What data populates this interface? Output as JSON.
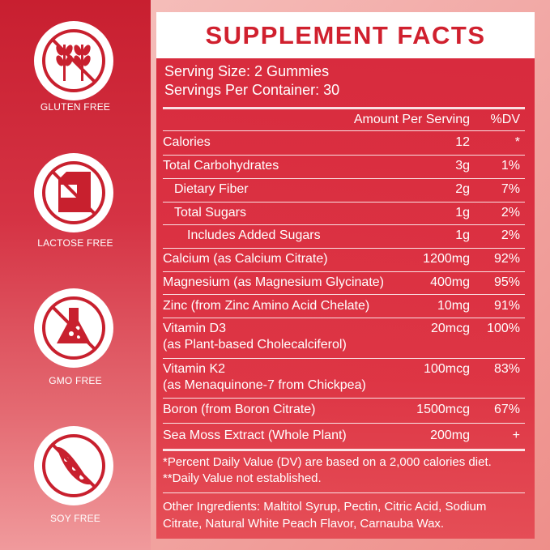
{
  "badges": [
    {
      "label": "GLUTEN FREE"
    },
    {
      "label": "LACTOSE FREE"
    },
    {
      "label": "GMO FREE"
    },
    {
      "label": "SOY FREE"
    }
  ],
  "title": "SUPPLEMENT FACTS",
  "serving_size": "Serving Size: 2 Gummies",
  "servings_per_container": "Servings Per Container: 30",
  "table": {
    "header": [
      "Amount Per Serving",
      "%DV"
    ],
    "rows": [
      {
        "name": "Calories",
        "amount": "12",
        "dv": "*"
      },
      {
        "name": "Total Carbohydrates",
        "amount": "3g",
        "dv": "1%"
      },
      {
        "name": "Dietary Fiber",
        "amount": "2g",
        "dv": "7%"
      },
      {
        "name": "Total Sugars",
        "amount": "1g",
        "dv": "2%"
      },
      {
        "name": "Includes Added Sugars",
        "amount": "1g",
        "dv": "2%"
      },
      {
        "name": "Calcium (as Calcium Citrate)",
        "amount": "1200mg",
        "dv": "92%"
      },
      {
        "name": "Magnesium (as Magnesium Glycinate)",
        "amount": "400mg",
        "dv": "95%"
      },
      {
        "name": "Zinc (from Zinc Amino Acid Chelate)",
        "amount": "10mg",
        "dv": "91%"
      },
      {
        "name": "Vitamin D3",
        "detail": "(as Plant-based Cholecalciferol)",
        "amount": "20mcg",
        "dv": "100%"
      },
      {
        "name": "Vitamin K2",
        "detail": "(as Menaquinone-7 from Chickpea)",
        "amount": "100mcg",
        "dv": "83%"
      },
      {
        "name": "Boron (from Boron Citrate)",
        "amount": "1500mcg",
        "dv": "67%"
      },
      {
        "name": "Sea Moss Extract (Whole Plant)",
        "amount": "200mg",
        "dv": "+"
      }
    ]
  },
  "footnotes": [
    "*Percent Daily Value (DV) are based on a 2,000 calories diet.",
    "**Daily Value not established."
  ],
  "other_ingredients": "Other Ingredients: Maltitol Syrup, Pectin, Citric Acid, Sodium Citrate, Natural White Peach Flavor, Carnauba Wax."
}
